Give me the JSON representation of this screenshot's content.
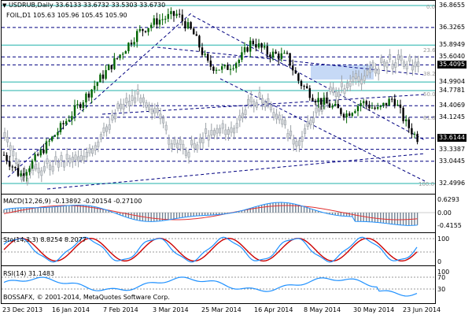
{
  "main_chart": {
    "symbol_line": "USDRUB,Daily  33.6133 33.6732 33.5303 33.6730",
    "overlay_line": "FOIL,D1 105.63 105.96 105.45 105.90",
    "price_levels": [
      "36.8655",
      "36.3265",
      "35.8949",
      "35.6040",
      "35.4095",
      "34.9904",
      "34.7781",
      "34.4069",
      "34.1245",
      "33.6144",
      "33.3387",
      "33.0445",
      "32.4996"
    ],
    "fib_labels": [
      "0.0",
      "23.6",
      "38.2",
      "50.0",
      "61.8",
      "100.0"
    ],
    "colors": {
      "bull": "#006400",
      "bear": "#000000",
      "overlay": "#9aa0a6",
      "fib_zone": "#c6d9f6",
      "trend": "#000080",
      "fib": "#20b2aa"
    }
  },
  "macd": {
    "label": "MACD(12,26,9) -0.13892 -0.20154 -0.27100",
    "scale": [
      "0.6293",
      "0.00",
      "-0.4155"
    ]
  },
  "stochastic": {
    "label": "Sto(14,3,3) 8.8254 8.2077",
    "scale": [
      "100",
      "0"
    ]
  },
  "rsi": {
    "label": "RSI(14) 31.1483",
    "scale": [
      "100",
      "70",
      "30"
    ]
  },
  "watermark": "BOSSAFX, © 2001-2014, MetaQuotes Software Corp.",
  "x_axis": [
    "23 Dec 2013",
    "16 Jan 2014",
    "7 Feb 2014",
    "3 Mar 2014",
    "25 Mar 2014",
    "16 Apr 2014",
    "8 May 2014",
    "30 May 2014",
    "23 Jun 2014"
  ]
}
